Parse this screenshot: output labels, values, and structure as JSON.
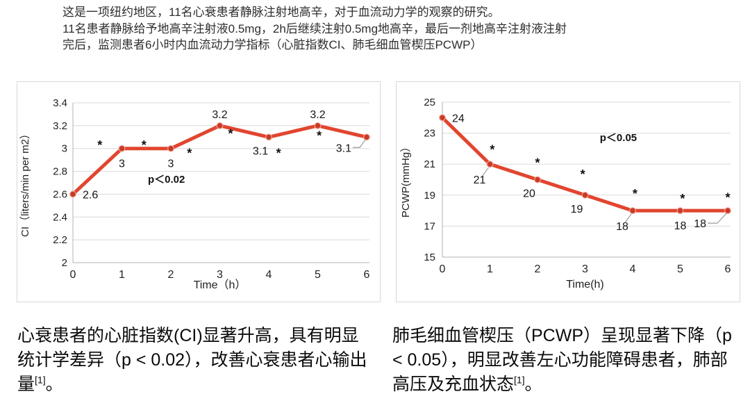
{
  "header": {
    "lines": [
      "这是一项纽约地区，11名心衰患者静脉注射地高辛，对于血流动力学的观察的研究。",
      "11名患者静脉给予地高辛注射液0.5mg，2h后继续注射0.5mg地高辛，最后一剂地高辛注射液注射",
      "完后，监测患者6小时内血流动力学指标（心脏指数CI、肺毛细血管楔压PCWP）"
    ]
  },
  "chart_data": [
    {
      "type": "line",
      "name": "cardiac-index",
      "title": "",
      "x": [
        0,
        1,
        2,
        3,
        4,
        5,
        6
      ],
      "values": [
        2.6,
        3,
        3,
        3.2,
        3.1,
        3.2,
        3.1
      ],
      "point_labels": [
        "2.6",
        "3",
        "3",
        "3.2",
        "3.1",
        "3.2",
        "3.1"
      ],
      "label_pos": [
        "right",
        "below",
        "below",
        "above",
        "below-left",
        "above",
        "leader-left"
      ],
      "xlabel": "Time（h）",
      "ylabel": "CI（liters/min per m2）",
      "xlim": [
        0,
        6
      ],
      "ylim": [
        2,
        3.4
      ],
      "xtick_labels": [
        "0",
        "1",
        "2",
        "3",
        "4",
        "5",
        "6"
      ],
      "yticks": [
        2,
        2.2,
        2.4,
        2.6,
        2.8,
        3,
        3.2,
        3.4
      ],
      "ytick_labels": [
        "2",
        "2.2",
        "2.4",
        "2.6",
        "2.8",
        "3",
        "3.2",
        "3.4"
      ],
      "annotation": {
        "text": "p＜0.02",
        "x": 1.91,
        "y": 2.7
      },
      "significance_marks": [
        [
          0.55,
          3.06
        ],
        [
          1.45,
          3.06
        ],
        [
          2.38,
          2.99
        ],
        [
          3.22,
          3.16
        ],
        [
          4.2,
          2.99
        ],
        [
          5.03,
          3.14
        ]
      ],
      "line_color": "#e2452f",
      "marker_color": "#c93a28",
      "grid": true,
      "legend": "none"
    },
    {
      "type": "line",
      "name": "pcwp",
      "title": "",
      "x": [
        0,
        1,
        2,
        3,
        4,
        5,
        6
      ],
      "values": [
        24,
        21,
        20,
        19,
        18,
        18,
        18
      ],
      "point_labels": [
        "24",
        "21",
        "20",
        "19",
        "18",
        "18",
        "18"
      ],
      "label_pos": [
        "right",
        "leader-below-left",
        "below-left",
        "below-left",
        "leader-below-left",
        "below",
        "leader-left-far"
      ],
      "xlabel": "Time(h)",
      "ylabel": "PCWP(mmHg）",
      "xlim": [
        0,
        6
      ],
      "ylim": [
        15,
        25
      ],
      "xtick_labels": [
        "0",
        "1",
        "2",
        "3",
        "4",
        "5",
        "6"
      ],
      "yticks": [
        15,
        17,
        19,
        21,
        23,
        25
      ],
      "ytick_labels": [
        "15",
        "17",
        "19",
        "21",
        "23",
        "25"
      ],
      "annotation": {
        "text": "p＜0.05",
        "x": 3.7,
        "y": 22.5
      },
      "significance_marks": [
        [
          1.05,
          22.15
        ],
        [
          2.0,
          21.3
        ],
        [
          2.95,
          20.55
        ],
        [
          4.05,
          19.3
        ],
        [
          5.05,
          19.0
        ],
        [
          6.0,
          19.05
        ]
      ],
      "line_color": "#e2452f",
      "marker_color": "#c93a28",
      "grid": true,
      "legend": "none"
    }
  ],
  "captions": [
    {
      "body": "心衰患者的心脏指数(CI)显著升高，具有明显统计学差异（p < 0.02），改善心衰患者心输出量",
      "sup": "[1]",
      "end": "。"
    },
    {
      "body": "肺毛细血管楔压（PCWP）呈现显著下降（p < 0.05），明显改善左心功能障碍患者，肺部高压及充血状态",
      "sup": "[1]",
      "end": "。"
    }
  ]
}
